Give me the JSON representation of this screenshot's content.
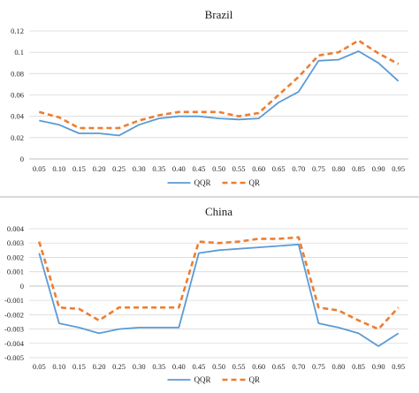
{
  "chart_data": [
    {
      "type": "line",
      "title": "Brazil",
      "xlabel": "",
      "ylabel": "",
      "categories": [
        "0.05",
        "0.10",
        "0.15",
        "0.20",
        "0.25",
        "0.30",
        "0.35",
        "0.40",
        "0.45",
        "0.50",
        "0.55",
        "0.60",
        "0.65",
        "0.70",
        "0.75",
        "0.80",
        "0.85",
        "0.90",
        "0.95"
      ],
      "ylim": [
        0,
        0.12
      ],
      "yticks": [
        "0",
        "0.02",
        "0.04",
        "0.06",
        "0.08",
        "0.1",
        "0.12"
      ],
      "ytick_values": [
        0,
        0.02,
        0.04,
        0.06,
        0.08,
        0.1,
        0.12
      ],
      "grid": true,
      "legend_position": "bottom",
      "series": [
        {
          "name": "QQR",
          "color": "#5b9bd5",
          "style": "solid",
          "values": [
            0.036,
            0.032,
            0.024,
            0.024,
            0.022,
            0.032,
            0.038,
            0.04,
            0.04,
            0.038,
            0.037,
            0.038,
            0.053,
            0.063,
            0.092,
            0.093,
            0.101,
            0.09,
            0.073
          ]
        },
        {
          "name": "QR",
          "color": "#ed7d31",
          "style": "dashed",
          "values": [
            0.044,
            0.039,
            0.029,
            0.029,
            0.029,
            0.036,
            0.041,
            0.044,
            0.044,
            0.044,
            0.04,
            0.043,
            0.06,
            0.077,
            0.097,
            0.1,
            0.111,
            0.099,
            0.089
          ]
        }
      ]
    },
    {
      "type": "line",
      "title": "China",
      "xlabel": "",
      "ylabel": "",
      "categories": [
        "0.05",
        "0.10",
        "0.15",
        "0.20",
        "0.25",
        "0.30",
        "0.35",
        "0.40",
        "0.45",
        "0.50",
        "0.55",
        "0.60",
        "0.65",
        "0.70",
        "0.75",
        "0.80",
        "0.85",
        "0.90",
        "0.95"
      ],
      "ylim": [
        -0.005,
        0.004
      ],
      "yticks": [
        "-0.005",
        "-0.004",
        "-0.003",
        "-0.002",
        "-0.001",
        "0",
        "0.001",
        "0.002",
        "0.003",
        "0.004"
      ],
      "ytick_values": [
        -0.005,
        -0.004,
        -0.003,
        -0.002,
        -0.001,
        0,
        0.001,
        0.002,
        0.003,
        0.004
      ],
      "grid": true,
      "legend_position": "bottom",
      "series": [
        {
          "name": "QQR",
          "color": "#5b9bd5",
          "style": "solid",
          "values": [
            0.0023,
            -0.0026,
            -0.0029,
            -0.0033,
            -0.003,
            -0.0029,
            -0.0029,
            -0.0029,
            0.0023,
            0.0025,
            0.0026,
            0.0027,
            0.0028,
            0.0029,
            -0.0026,
            -0.0029,
            -0.0033,
            -0.0042,
            -0.0033
          ]
        },
        {
          "name": "QR",
          "color": "#ed7d31",
          "style": "dashed",
          "values": [
            0.0031,
            -0.0015,
            -0.0016,
            -0.0024,
            -0.0015,
            -0.0015,
            -0.0015,
            -0.0015,
            0.0031,
            0.003,
            0.0031,
            0.0033,
            0.0033,
            0.0034,
            -0.0015,
            -0.0017,
            -0.0024,
            -0.003,
            -0.0015
          ]
        }
      ]
    }
  ]
}
